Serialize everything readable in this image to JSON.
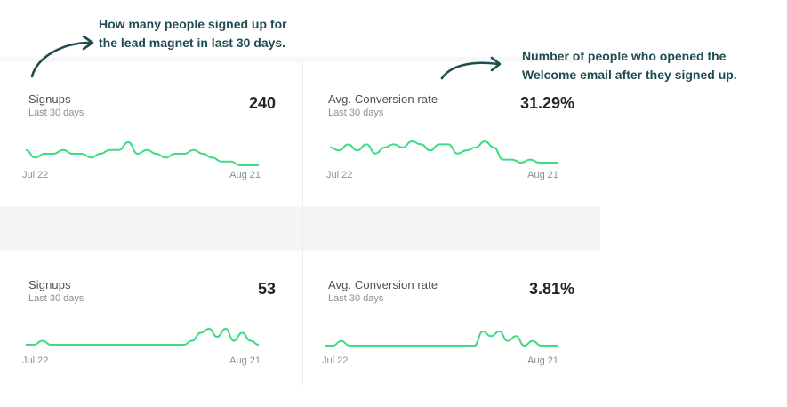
{
  "annotations": {
    "left": [
      "How many people signed up for",
      "the lead magnet in last 30 days."
    ],
    "right": [
      "Number of people who opened the",
      "Welcome email after they signed up."
    ]
  },
  "colors": {
    "spark": "#3ddc84",
    "annotation": "#1f4d4f"
  },
  "cards": [
    {
      "title": "Signups",
      "subtitle": "Last 30 days",
      "value": "240",
      "x_start": "Jul 22",
      "x_end": "Aug 21",
      "chart_data": {
        "type": "line",
        "values": [
          5,
          3,
          4,
          4,
          5,
          4,
          4,
          3,
          4,
          5,
          5,
          7,
          4,
          5,
          4,
          3,
          4,
          4,
          5,
          4,
          3,
          2,
          2,
          1,
          1,
          1
        ]
      }
    },
    {
      "title": "Avg. Conversion rate",
      "subtitle": "Last 30 days",
      "value": "31.29%",
      "x_start": "Jul 22",
      "x_end": "Aug 21",
      "chart_data": {
        "type": "line",
        "values": [
          6,
          5,
          7,
          5,
          7,
          4,
          6,
          7,
          6,
          8,
          7,
          5,
          7,
          7,
          4,
          5,
          6,
          8,
          6,
          2,
          2,
          1,
          2,
          1,
          1,
          1
        ]
      }
    },
    {
      "title": "Signups",
      "subtitle": "Last 30 days",
      "value": "53",
      "x_start": "Jul 22",
      "x_end": "Aug 21",
      "chart_data": {
        "type": "line",
        "values": [
          1,
          1,
          2,
          1,
          1,
          1,
          1,
          1,
          1,
          1,
          1,
          1,
          1,
          1,
          1,
          1,
          1,
          1,
          1,
          1,
          2,
          4,
          5,
          3,
          5,
          2,
          4,
          2,
          1
        ]
      }
    },
    {
      "title": "Avg. Conversion rate",
      "subtitle": "Last 30 days",
      "value": "3.81%",
      "x_start": "Jul 22",
      "x_end": "Aug 21",
      "chart_data": {
        "type": "line",
        "values": [
          1,
          1,
          2,
          1,
          1,
          1,
          1,
          1,
          1,
          1,
          1,
          1,
          1,
          1,
          1,
          1,
          1,
          1,
          1,
          4,
          3,
          4,
          2,
          3,
          1,
          2,
          1,
          1,
          1
        ]
      }
    }
  ]
}
